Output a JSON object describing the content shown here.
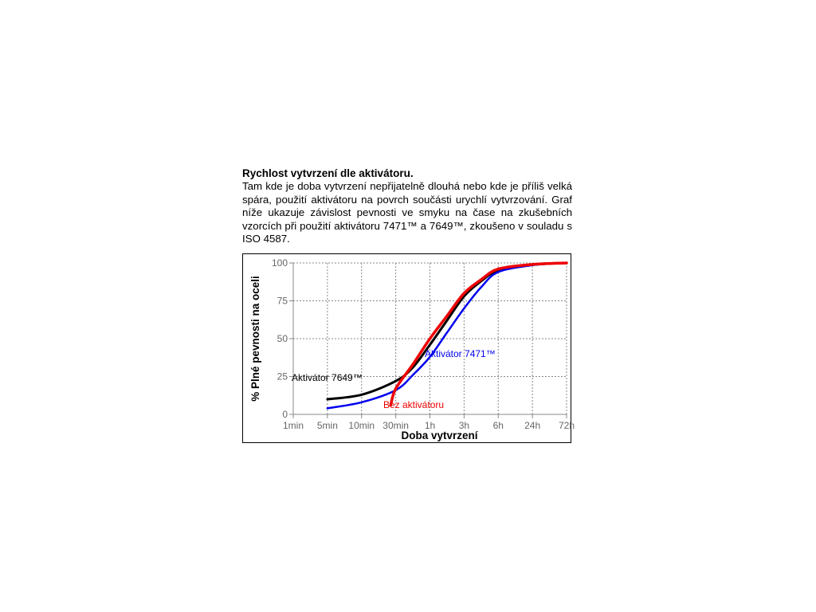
{
  "heading": "Rychlost vytvrzení dle aktivátoru.",
  "paragraph": "Tam kde je doba vytvrzení nepřijatelně dlouhá nebo kde je příliš velká spára, použití aktivátoru na povrch součásti urychlí vytvrzování. Graf níže ukazuje závislost pevnosti ve smyku na čase na zkušebních vzorcích při použití aktivátoru 7471™ a 7649™, zkoušeno v souladu s ISO 4587.",
  "chart_data": {
    "type": "line",
    "xlabel": "Doba vytvrzení",
    "ylabel": "% Plné pevnosti na oceli",
    "categories": [
      "1min",
      "5min",
      "10min",
      "30min",
      "1h",
      "3h",
      "6h",
      "24h",
      "72h"
    ],
    "yticks": [
      0,
      25,
      50,
      75,
      100
    ],
    "ylim": [
      0,
      100
    ],
    "grid": true,
    "legend": "none",
    "series": [
      {
        "name": "Aktivátor 7649™",
        "color": "#000000",
        "points": [
          [
            1,
            10
          ],
          [
            2,
            13
          ],
          [
            3,
            22
          ],
          [
            3.5,
            31
          ],
          [
            4,
            46
          ],
          [
            4.5,
            62
          ],
          [
            5,
            78
          ],
          [
            5.5,
            88
          ],
          [
            6,
            95
          ],
          [
            7,
            99
          ],
          [
            8,
            100
          ]
        ]
      },
      {
        "name": "Aktivátor 7471™",
        "color": "#0000ee",
        "points": [
          [
            1,
            4
          ],
          [
            2,
            8
          ],
          [
            3,
            16
          ],
          [
            3.5,
            26
          ],
          [
            4,
            38
          ],
          [
            4.5,
            54
          ],
          [
            5,
            70
          ],
          [
            5.5,
            84
          ],
          [
            6,
            94
          ],
          [
            7,
            98.5
          ],
          [
            8,
            100
          ]
        ]
      },
      {
        "name": "Bez aktivátoru",
        "color": "#ee0000",
        "points": [
          [
            2.85,
            6
          ],
          [
            3,
            17
          ],
          [
            3.5,
            33
          ],
          [
            4,
            50
          ],
          [
            4.5,
            65
          ],
          [
            5,
            80
          ],
          [
            5.5,
            89
          ],
          [
            6,
            96
          ],
          [
            7,
            99
          ],
          [
            8,
            100
          ]
        ]
      }
    ]
  }
}
